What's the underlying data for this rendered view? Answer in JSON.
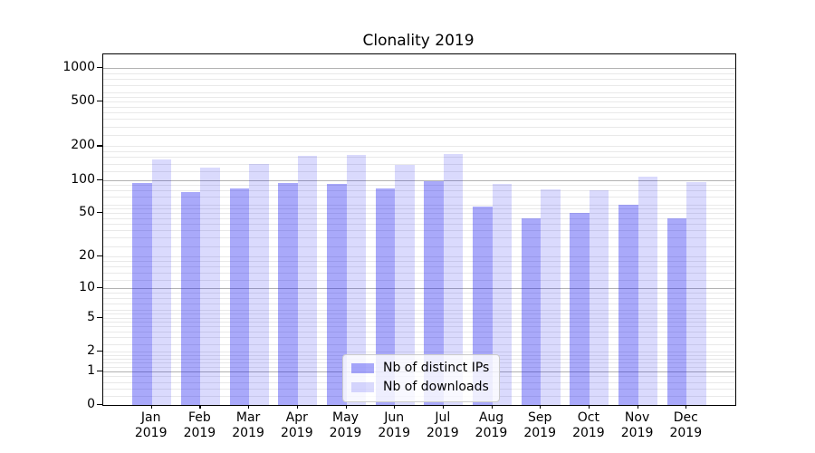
{
  "chart_data": {
    "type": "bar",
    "title": "Clonality 2019",
    "categories": [
      "Jan",
      "Feb",
      "Mar",
      "Apr",
      "May",
      "Jun",
      "Jul",
      "Aug",
      "Sep",
      "Oct",
      "Nov",
      "Dec"
    ],
    "year_label": "2019",
    "series": [
      {
        "name": "Nb of distinct IPs",
        "color": "rgba(10,10,240,0.35)",
        "values": [
          93,
          78,
          84,
          93,
          92,
          83,
          97,
          57,
          45,
          50,
          60,
          45
        ]
      },
      {
        "name": "Nb of downloads",
        "color": "rgba(10,10,240,0.15)",
        "values": [
          152,
          130,
          139,
          165,
          168,
          135,
          171,
          92,
          82,
          80,
          107,
          96
        ]
      }
    ],
    "yscale": "log(1+x)",
    "y_ticks": [
      1000,
      500,
      200,
      100,
      50,
      20,
      10,
      5,
      2,
      1,
      0
    ],
    "y_major_gridlines": [
      1,
      10,
      100,
      1000
    ],
    "ylim": [
      0,
      1230
    ],
    "grid": "horizontal major+minor",
    "legend_position": "lower center"
  },
  "colors": {
    "background": "#ffffff",
    "bar_distinct_ips_rendered": "#a9a9fa",
    "bar_downloads_rendered": "#d8d8f9",
    "major_grid": "#b2b2b2",
    "minor_grid": "#e9e9e9",
    "axis": "#000000",
    "text": "#000000",
    "legend_border": "#cccccc"
  }
}
